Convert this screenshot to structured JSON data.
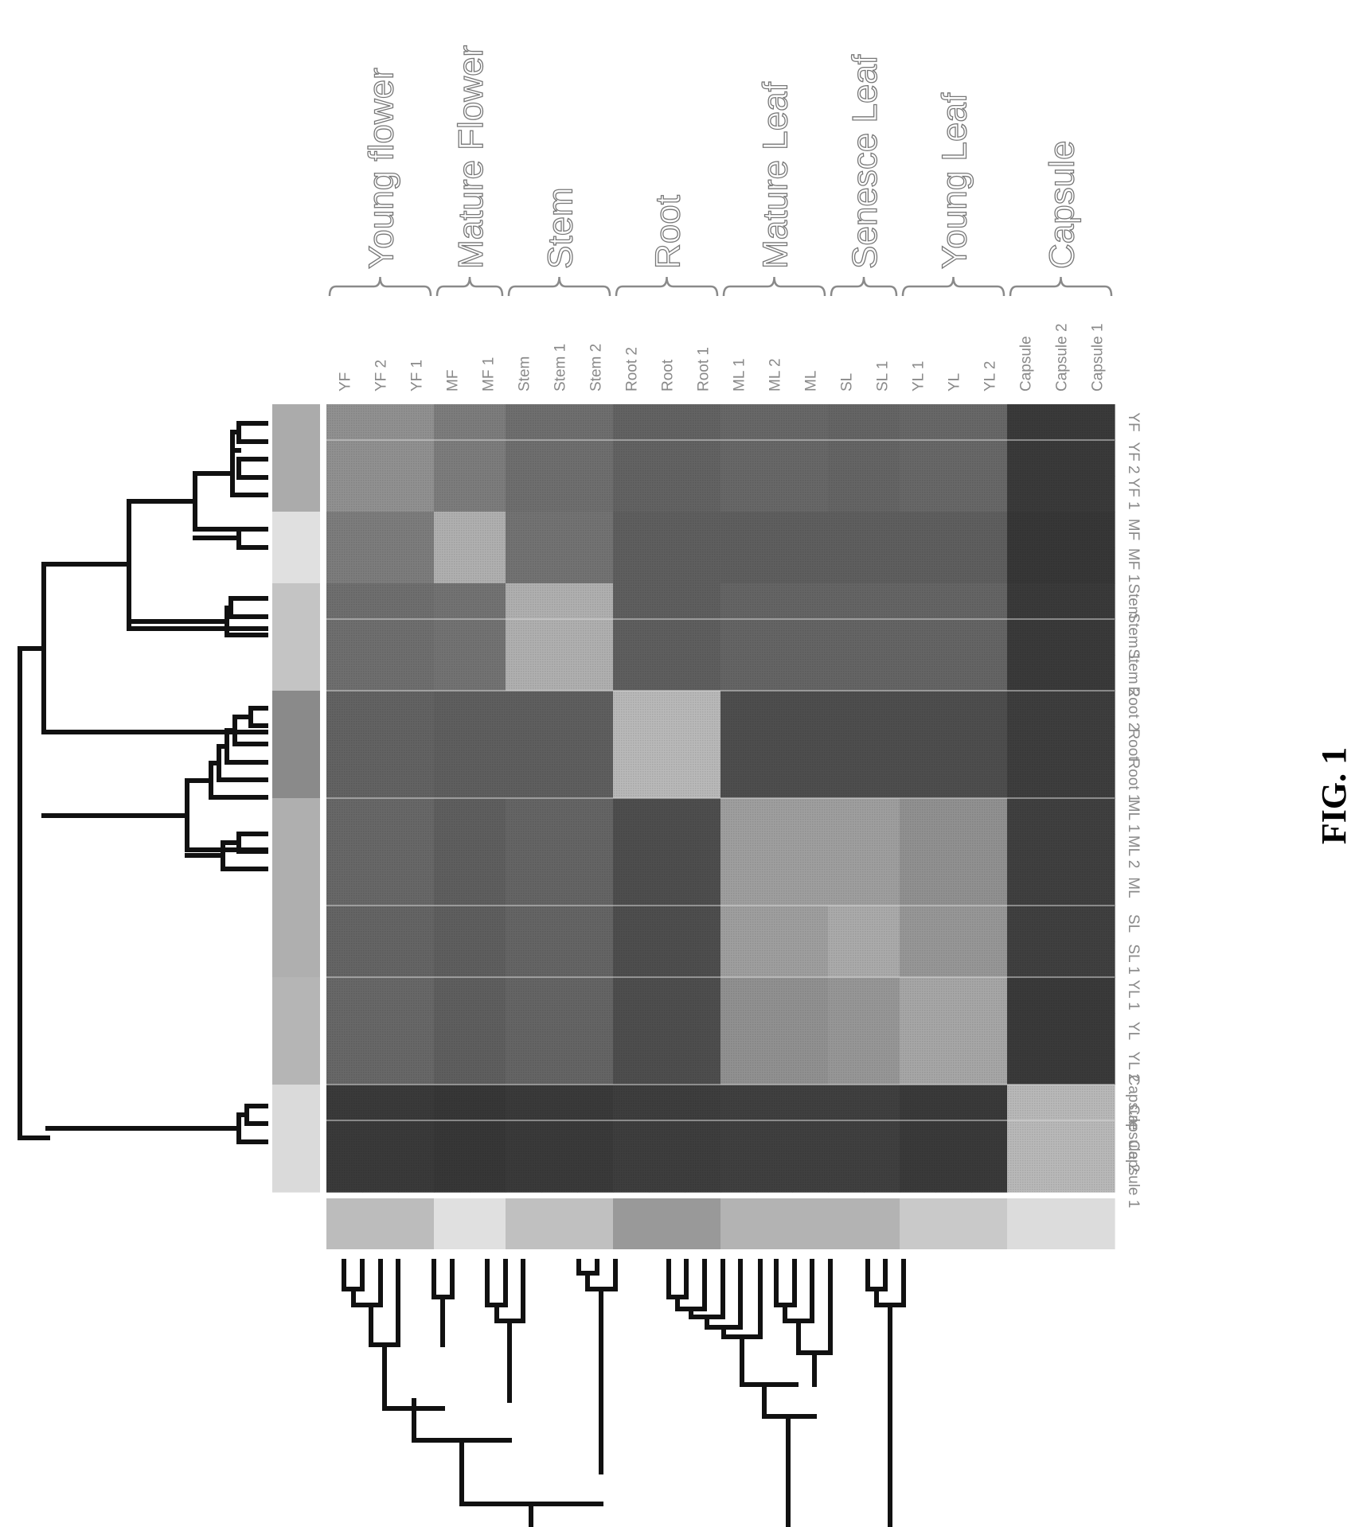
{
  "figure_label": "FIG. 1",
  "samples_top": [
    "YF",
    "YF 2",
    "YF 1",
    "MF",
    "MF 1",
    "Stem",
    "Stem 1",
    "Stem 2",
    "Root 2",
    "Root",
    "Root 1",
    "ML 1",
    "ML 2",
    "ML",
    "SL",
    "SL 1",
    "YL 1",
    "YL",
    "YL 2",
    "Capsule",
    "Capsule 2",
    "Capsule 1"
  ],
  "samples_side": [
    "YF",
    "YF 2",
    "YF 1",
    "MF",
    "MF 1",
    "Stem",
    "Stem 1",
    "Stem 2",
    "Root 2",
    "Root",
    "Root 1",
    "ML 1",
    "ML 2",
    "ML",
    "SL",
    "SL 1",
    "YL 1",
    "YL",
    "YL 2",
    "Capsule",
    "Capsule 2",
    "Capsule 1"
  ],
  "groups": [
    {
      "label": "Young flower",
      "span": [
        0,
        2
      ]
    },
    {
      "label": "Mature Flower",
      "span": [
        3,
        4
      ]
    },
    {
      "label": "Stem",
      "span": [
        5,
        7
      ]
    },
    {
      "label": "Root",
      "span": [
        8,
        10
      ]
    },
    {
      "label": "Mature Leaf",
      "span": [
        11,
        13
      ]
    },
    {
      "label": "Senesce Leaf",
      "span": [
        14,
        15
      ]
    },
    {
      "label": "Young Leaf",
      "span": [
        16,
        18
      ]
    },
    {
      "label": "Capsule",
      "span": [
        19,
        21
      ]
    }
  ],
  "heatmap": {
    "group_index": [
      0,
      0,
      0,
      1,
      1,
      2,
      2,
      2,
      3,
      3,
      3,
      4,
      4,
      4,
      5,
      5,
      6,
      6,
      6,
      7,
      7,
      7
    ],
    "block_levels": [
      [
        0.55,
        0.45,
        0.38,
        0.32,
        0.35,
        0.33,
        0.35,
        0.12
      ],
      [
        0.45,
        0.7,
        0.4,
        0.3,
        0.3,
        0.3,
        0.3,
        0.1
      ],
      [
        0.38,
        0.4,
        0.7,
        0.3,
        0.33,
        0.33,
        0.33,
        0.12
      ],
      [
        0.32,
        0.3,
        0.3,
        0.75,
        0.22,
        0.22,
        0.22,
        0.14
      ],
      [
        0.35,
        0.3,
        0.33,
        0.22,
        0.62,
        0.62,
        0.55,
        0.15
      ],
      [
        0.33,
        0.3,
        0.33,
        0.22,
        0.62,
        0.68,
        0.58,
        0.15
      ],
      [
        0.35,
        0.3,
        0.33,
        0.22,
        0.55,
        0.58,
        0.66,
        0.12
      ],
      [
        0.12,
        0.1,
        0.12,
        0.14,
        0.15,
        0.15,
        0.12,
        0.75
      ]
    ],
    "side_strip_levels": [
      0.7,
      0.7,
      0.7,
      0.95,
      0.95,
      0.82,
      0.82,
      0.82,
      0.55,
      0.55,
      0.55,
      0.72,
      0.72,
      0.72,
      0.72,
      0.72,
      0.75,
      0.75,
      0.75,
      0.92,
      0.92,
      0.92
    ],
    "bottom_strip_levels": [
      0.78,
      0.78,
      0.78,
      0.95,
      0.95,
      0.8,
      0.8,
      0.8,
      0.62,
      0.62,
      0.62,
      0.74,
      0.74,
      0.74,
      0.74,
      0.74,
      0.84,
      0.84,
      0.84,
      0.93,
      0.93,
      0.93
    ]
  },
  "colors": {
    "background": "#ffffff",
    "dendrogram": "#111111",
    "label": "#8a8a8a"
  }
}
